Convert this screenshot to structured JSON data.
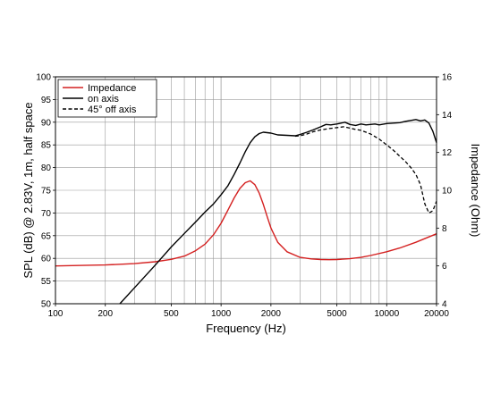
{
  "chart_data": {
    "type": "line",
    "title": "",
    "xlabel": "Frequency (Hz)",
    "ylabel": "SPL (dB) @ 2.83V, 1m, half space",
    "y2label": "Impedance (Ohm)",
    "x_scale": "log",
    "xlim": [
      100,
      20000
    ],
    "ylim": [
      50,
      100
    ],
    "y2lim": [
      4,
      16
    ],
    "grid": true,
    "legend_position": "top-left",
    "x_ticks": [
      100,
      200,
      500,
      1000,
      2000,
      5000,
      10000,
      20000
    ],
    "x_tick_labels": [
      "100",
      "200",
      "500",
      "1000",
      "2000",
      "5000",
      "10000",
      "20000"
    ],
    "y_ticks": [
      50,
      55,
      60,
      65,
      70,
      75,
      80,
      85,
      90,
      95,
      100
    ],
    "y_tick_labels": [
      "50",
      "55",
      "60",
      "65",
      "70",
      "75",
      "80",
      "85",
      "90",
      "95",
      "100"
    ],
    "y2_ticks": [
      4,
      6,
      8,
      10,
      12,
      14,
      16
    ],
    "y2_tick_labels": [
      "4",
      "6",
      "8",
      "10",
      "12",
      "14",
      "16"
    ],
    "series": [
      {
        "name": "Impedance",
        "axis": "right",
        "color": "#d42020",
        "dash": "solid",
        "x": [
          100,
          200,
          300,
          400,
          500,
          600,
          700,
          800,
          900,
          1000,
          1100,
          1200,
          1300,
          1400,
          1500,
          1600,
          1700,
          1800,
          1900,
          2000,
          2200,
          2500,
          3000,
          3500,
          4000,
          4500,
          5000,
          6000,
          7000,
          8000,
          10000,
          12000,
          15000,
          20000
        ],
        "y": [
          6.0,
          6.05,
          6.12,
          6.22,
          6.35,
          6.52,
          6.8,
          7.15,
          7.65,
          8.25,
          8.95,
          9.6,
          10.1,
          10.4,
          10.5,
          10.3,
          9.85,
          9.25,
          8.6,
          8.0,
          7.25,
          6.75,
          6.45,
          6.37,
          6.34,
          6.33,
          6.34,
          6.38,
          6.45,
          6.55,
          6.75,
          6.95,
          7.25,
          7.7
        ]
      },
      {
        "name": "on axis",
        "axis": "left",
        "color": "#000000",
        "dash": "solid",
        "x": [
          245,
          300,
          400,
          500,
          600,
          700,
          800,
          900,
          1000,
          1100,
          1200,
          1300,
          1400,
          1500,
          1600,
          1700,
          1800,
          2000,
          2200,
          2500,
          2800,
          3000,
          3300,
          3600,
          4000,
          4300,
          4600,
          5000,
          5300,
          5600,
          6000,
          6500,
          7000,
          7500,
          8000,
          8500,
          9000,
          10000,
          11000,
          12000,
          13000,
          14000,
          15000,
          16000,
          17000,
          18000,
          19000,
          20000
        ],
        "y": [
          50,
          53.5,
          58.5,
          62.5,
          65.5,
          68.0,
          70.2,
          72.0,
          74.0,
          76.0,
          78.5,
          81.0,
          83.5,
          85.5,
          86.8,
          87.5,
          87.8,
          87.6,
          87.2,
          87.1,
          87.0,
          87.3,
          87.8,
          88.3,
          89.0,
          89.5,
          89.4,
          89.6,
          89.8,
          90.0,
          89.5,
          89.3,
          89.6,
          89.4,
          89.5,
          89.6,
          89.4,
          89.7,
          89.8,
          89.9,
          90.2,
          90.4,
          90.6,
          90.3,
          90.5,
          89.8,
          88.0,
          85.5
        ]
      },
      {
        "name": "45° off axis",
        "axis": "left",
        "color": "#000000",
        "dash": "dashed",
        "x": [
          2800,
          3000,
          3300,
          3600,
          4000,
          4500,
          5000,
          5500,
          6000,
          6500,
          7000,
          8000,
          9000,
          10000,
          11000,
          12000,
          13000,
          14000,
          15000,
          16000,
          17000,
          18000,
          19000,
          20000
        ],
        "y": [
          86.9,
          87.0,
          87.4,
          87.9,
          88.3,
          88.6,
          88.8,
          89.0,
          88.7,
          88.4,
          88.2,
          87.4,
          86.3,
          85.0,
          83.8,
          82.5,
          81.3,
          80.0,
          78.5,
          76.2,
          72.0,
          70.0,
          70.5,
          72.6
        ]
      }
    ]
  }
}
